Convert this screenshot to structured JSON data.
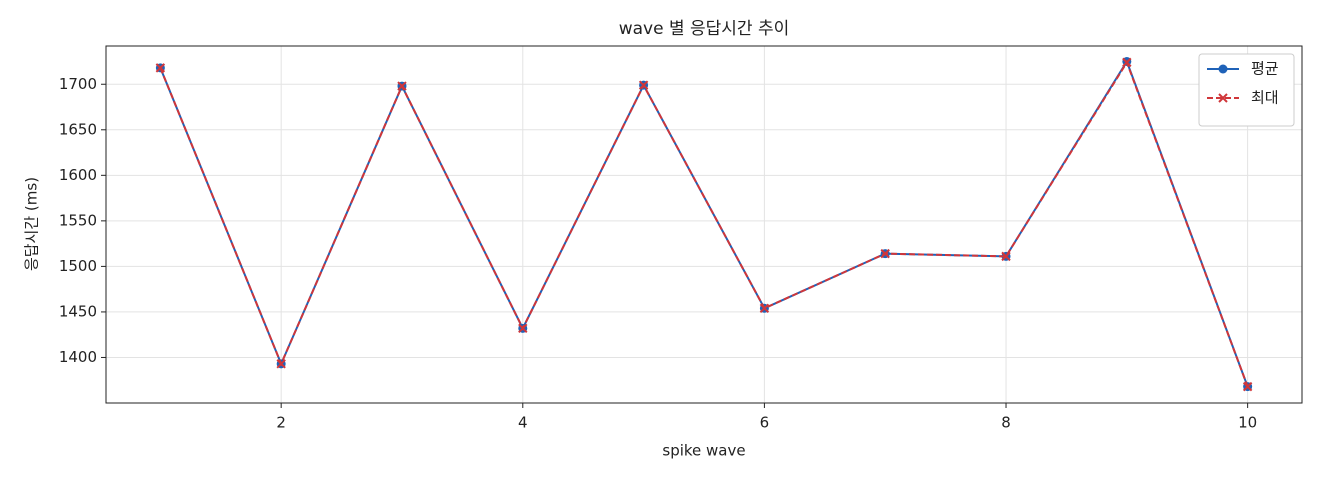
{
  "chart_data": {
    "type": "line",
    "title": "wave 별 응답시간 추이",
    "x_label": "spike wave",
    "y_label": "응답시간 (ms)",
    "x": [
      1,
      2,
      3,
      4,
      5,
      6,
      7,
      8,
      9,
      10
    ],
    "series": [
      {
        "name": "평균",
        "color": "#1f62b8",
        "linestyle": "solid",
        "marker": "o",
        "values": [
          1718,
          1393,
          1698,
          1432,
          1699,
          1454,
          1514,
          1511,
          1725,
          1368
        ]
      },
      {
        "name": "최대",
        "color": "#d0363a",
        "linestyle": "dashed",
        "marker": "x",
        "values": [
          1718,
          1393,
          1698,
          1432,
          1699,
          1454,
          1514,
          1511,
          1724,
          1368
        ]
      }
    ],
    "xlim": [
      0.55,
      10.45
    ],
    "xticks": [
      2,
      4,
      6,
      8,
      10
    ],
    "ylim": [
      1350,
      1742
    ],
    "yticks": [
      1400,
      1450,
      1500,
      1550,
      1600,
      1650,
      1700
    ],
    "grid": true,
    "legend": "upper right"
  }
}
